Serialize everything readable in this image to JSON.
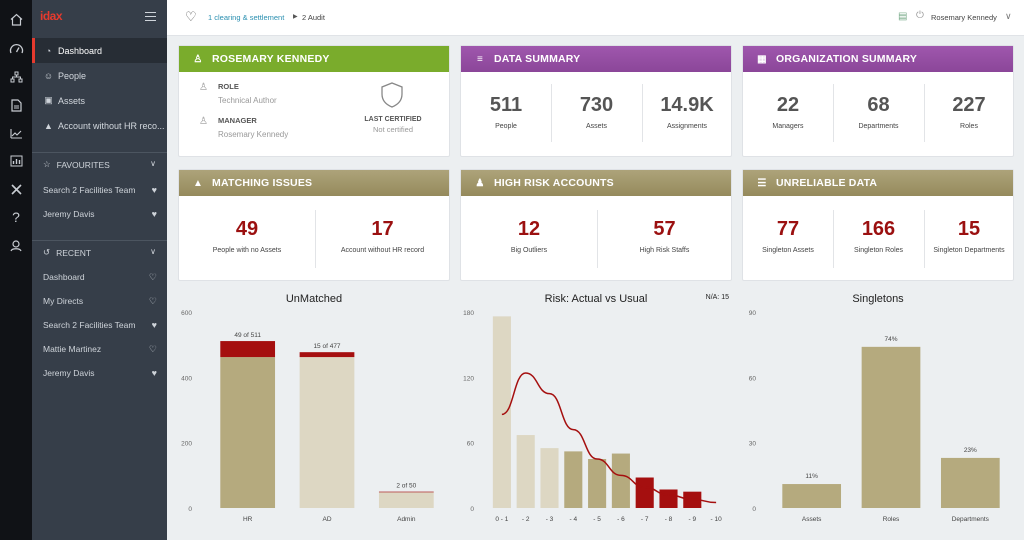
{
  "app": {
    "logo": "idax"
  },
  "breadcrumb": {
    "first": "1 clearing & settlement",
    "second": "2 Audit"
  },
  "header": {
    "user_name": "Rosemary Kennedy"
  },
  "sidebar": {
    "nav": [
      {
        "label": "Dashboard",
        "icon": "gauge-icon"
      },
      {
        "label": "People",
        "icon": "people-icon"
      },
      {
        "label": "Assets",
        "icon": "asset-icon"
      },
      {
        "label": "Account without HR reco...",
        "icon": "warning-icon"
      }
    ],
    "favourites_label": "FAVOURITES",
    "favourites": [
      {
        "label": "Search 2 Facilities Team"
      },
      {
        "label": "Jeremy Davis"
      }
    ],
    "recent_label": "RECENT",
    "recent": [
      {
        "label": "Dashboard"
      },
      {
        "label": "My Directs"
      },
      {
        "label": "Search 2 Facilities Team"
      },
      {
        "label": "Mattie Martinez"
      },
      {
        "label": "Jeremy Davis"
      }
    ]
  },
  "profile": {
    "title": "ROSEMARY KENNEDY",
    "role_label": "ROLE",
    "role": "Technical Author",
    "manager_label": "MANAGER",
    "manager": "Rosemary Kennedy",
    "cert_label": "LAST CERTIFIED",
    "cert": "Not certified"
  },
  "data_summary": {
    "title": "DATA SUMMARY",
    "stats": [
      {
        "value": "511",
        "label": "People"
      },
      {
        "value": "730",
        "label": "Assets"
      },
      {
        "value": "14.9K",
        "label": "Assignments"
      }
    ]
  },
  "org_summary": {
    "title": "ORGANIZATION SUMMARY",
    "stats": [
      {
        "value": "22",
        "label": "Managers"
      },
      {
        "value": "68",
        "label": "Departments"
      },
      {
        "value": "227",
        "label": "Roles"
      }
    ]
  },
  "matching": {
    "title": "MATCHING ISSUES",
    "stats": [
      {
        "value": "49",
        "label": "People with no Assets"
      },
      {
        "value": "17",
        "label": "Account without HR record"
      }
    ]
  },
  "high_risk": {
    "title": "HIGH RISK ACCOUNTS",
    "stats": [
      {
        "value": "12",
        "label": "Big Outliers"
      },
      {
        "value": "57",
        "label": "High Risk Staffs"
      }
    ]
  },
  "unreliable": {
    "title": "UNRELIABLE DATA",
    "stats": [
      {
        "value": "77",
        "label": "Singleton Assets"
      },
      {
        "value": "166",
        "label": "Singleton Roles"
      },
      {
        "value": "15",
        "label": "Singleton Departments"
      }
    ]
  },
  "colors": {
    "green": "#7aac2c",
    "purple": "#9b52a8",
    "olive": "#a39a6e",
    "bar_tan": "#b5aa7e",
    "bar_light": "#ddd7c3",
    "bar_red": "#a50f0f"
  },
  "chart_data": [
    {
      "type": "bar",
      "title": "UnMatched",
      "categories": [
        "HR",
        "AD",
        "Admin"
      ],
      "ylim": [
        0,
        600
      ],
      "yticks": [
        0,
        200,
        400,
        600
      ],
      "series": [
        {
          "values": [
            462,
            462,
            48
          ]
        },
        {
          "values": [
            49,
            15,
            2
          ]
        }
      ],
      "labels": [
        "49 of 511",
        "15 of 477",
        "2 of 50"
      ]
    },
    {
      "type": "bar",
      "title": "Risk: Actual vs Usual",
      "annotation": "N/A: 15",
      "categories": [
        "0 - 1",
        "- 2",
        "- 3",
        "- 4",
        "- 5",
        "- 6",
        "- 7",
        "- 8",
        "- 9",
        "- 10"
      ],
      "ylim": [
        0,
        180
      ],
      "yticks": [
        0,
        60,
        120,
        180
      ],
      "values": [
        176,
        67,
        55,
        52,
        45,
        50,
        28,
        17,
        15,
        0
      ],
      "curve": [
        86,
        124,
        105,
        72,
        45,
        30,
        19,
        12,
        8,
        5
      ]
    },
    {
      "type": "bar",
      "title": "Singletons",
      "categories": [
        "Assets",
        "Roles",
        "Departments"
      ],
      "ylim": [
        0,
        90
      ],
      "yticks": [
        0,
        30,
        60,
        90
      ],
      "values": [
        11,
        74,
        23
      ],
      "labels": [
        "11%",
        "74%",
        "23%"
      ]
    }
  ]
}
